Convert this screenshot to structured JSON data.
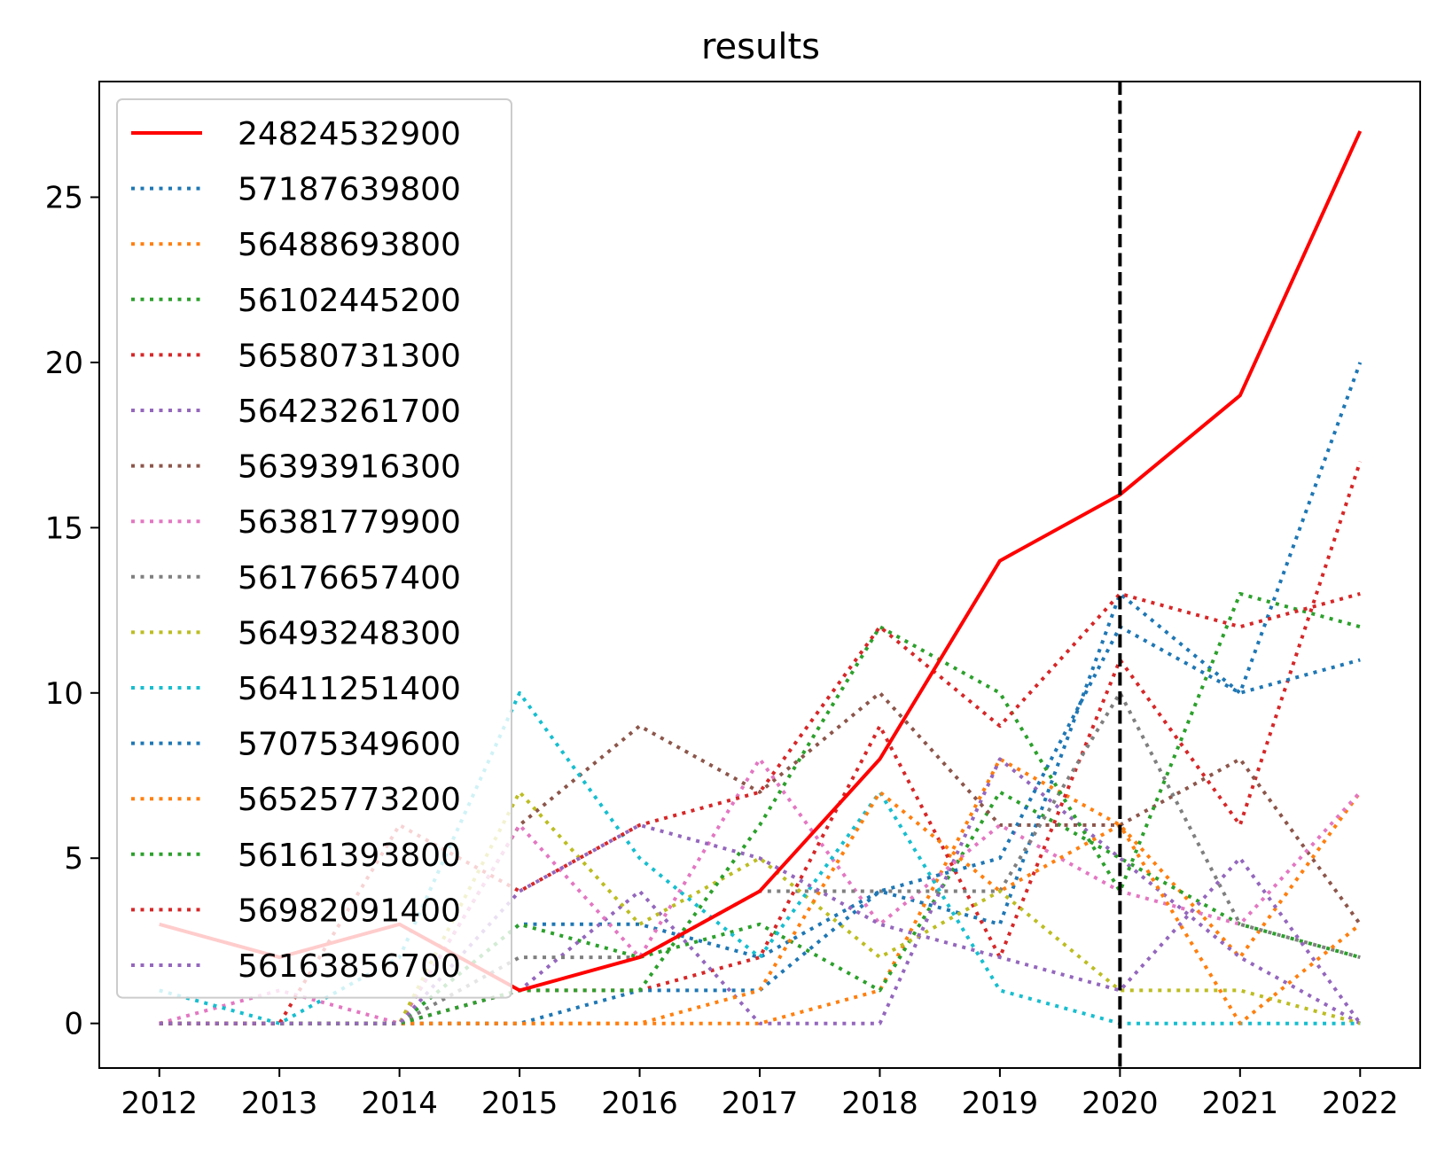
{
  "chart_data": {
    "type": "line",
    "title": "results",
    "xlabel": "",
    "ylabel": "",
    "x": [
      2012,
      2013,
      2014,
      2015,
      2016,
      2017,
      2018,
      2019,
      2020,
      2021,
      2022
    ],
    "x_ticks": [
      "2012",
      "2013",
      "2014",
      "2015",
      "2016",
      "2017",
      "2018",
      "2019",
      "2020",
      "2021",
      "2022"
    ],
    "y_ticks": [
      "0",
      "5",
      "10",
      "15",
      "20",
      "25"
    ],
    "xlim": [
      2011.5,
      2022.5
    ],
    "ylim": [
      -1.35,
      28.5
    ],
    "vline": {
      "x": 2020,
      "style": "dashed",
      "color": "#000000"
    },
    "grid": false,
    "legend_location": "upper left",
    "series": [
      {
        "name": "24824532900",
        "style": "solid",
        "color": "#ff0000",
        "values": [
          3,
          2,
          3,
          1,
          2,
          4,
          8,
          14,
          16,
          19,
          27
        ]
      },
      {
        "name": "57187639800",
        "style": "dotted",
        "color": "#1f77b4",
        "values": [
          0,
          0,
          0,
          3,
          3,
          2,
          4,
          3,
          13,
          10,
          20
        ]
      },
      {
        "name": "56488693800",
        "style": "dotted",
        "color": "#ff7f0e",
        "values": [
          0,
          0,
          0,
          0,
          0,
          0,
          1,
          8,
          6,
          2,
          7
        ]
      },
      {
        "name": "56102445200",
        "style": "dotted",
        "color": "#2ca02c",
        "values": [
          0,
          0,
          0,
          3,
          2,
          3,
          1,
          7,
          5,
          3,
          2
        ]
      },
      {
        "name": "56580731300",
        "style": "dotted",
        "color": "#d62728",
        "values": [
          0,
          0,
          0,
          1,
          1,
          2,
          9,
          2,
          11,
          6,
          17
        ]
      },
      {
        "name": "56423261700",
        "style": "dotted",
        "color": "#9467bd",
        "values": [
          0,
          0,
          0,
          1,
          4,
          0,
          0,
          8,
          5,
          2,
          0
        ]
      },
      {
        "name": "56393916300",
        "style": "dotted",
        "color": "#8c564b",
        "values": [
          0,
          0,
          0,
          6,
          9,
          7,
          10,
          6,
          6,
          8,
          3
        ]
      },
      {
        "name": "56381779900",
        "style": "dotted",
        "color": "#e377c2",
        "values": [
          0,
          1,
          0,
          6,
          2,
          8,
          3,
          6,
          4,
          3,
          7
        ]
      },
      {
        "name": "56176657400",
        "style": "dotted",
        "color": "#7f7f7f",
        "values": [
          0,
          0,
          0,
          2,
          2,
          4,
          4,
          4,
          10,
          3,
          2
        ]
      },
      {
        "name": "56493248300",
        "style": "dotted",
        "color": "#bcbd22",
        "values": [
          0,
          0,
          0,
          7,
          3,
          5,
          2,
          4,
          1,
          1,
          0
        ]
      },
      {
        "name": "56411251400",
        "style": "dotted",
        "color": "#17becf",
        "values": [
          1,
          0,
          2,
          10,
          5,
          2,
          7,
          1,
          0,
          0,
          0
        ]
      },
      {
        "name": "57075349600",
        "style": "dotted",
        "color": "#1f77b4",
        "values": [
          0,
          0,
          0,
          0,
          1,
          1,
          4,
          5,
          12,
          10,
          11
        ]
      },
      {
        "name": "56525773200",
        "style": "dotted",
        "color": "#ff7f0e",
        "values": [
          0,
          0,
          0,
          0,
          0,
          1,
          7,
          4,
          6,
          0,
          3
        ]
      },
      {
        "name": "56161393800",
        "style": "dotted",
        "color": "#2ca02c",
        "values": [
          0,
          0,
          0,
          1,
          1,
          6,
          12,
          10,
          4,
          13,
          12
        ]
      },
      {
        "name": "56982091400",
        "style": "dotted",
        "color": "#d62728",
        "values": [
          0,
          0,
          6,
          4,
          6,
          7,
          12,
          9,
          13,
          12,
          13
        ]
      },
      {
        "name": "56163856700",
        "style": "dotted",
        "color": "#9467bd",
        "values": [
          0,
          0,
          0,
          4,
          6,
          5,
          3,
          2,
          1,
          5,
          0
        ]
      }
    ]
  }
}
